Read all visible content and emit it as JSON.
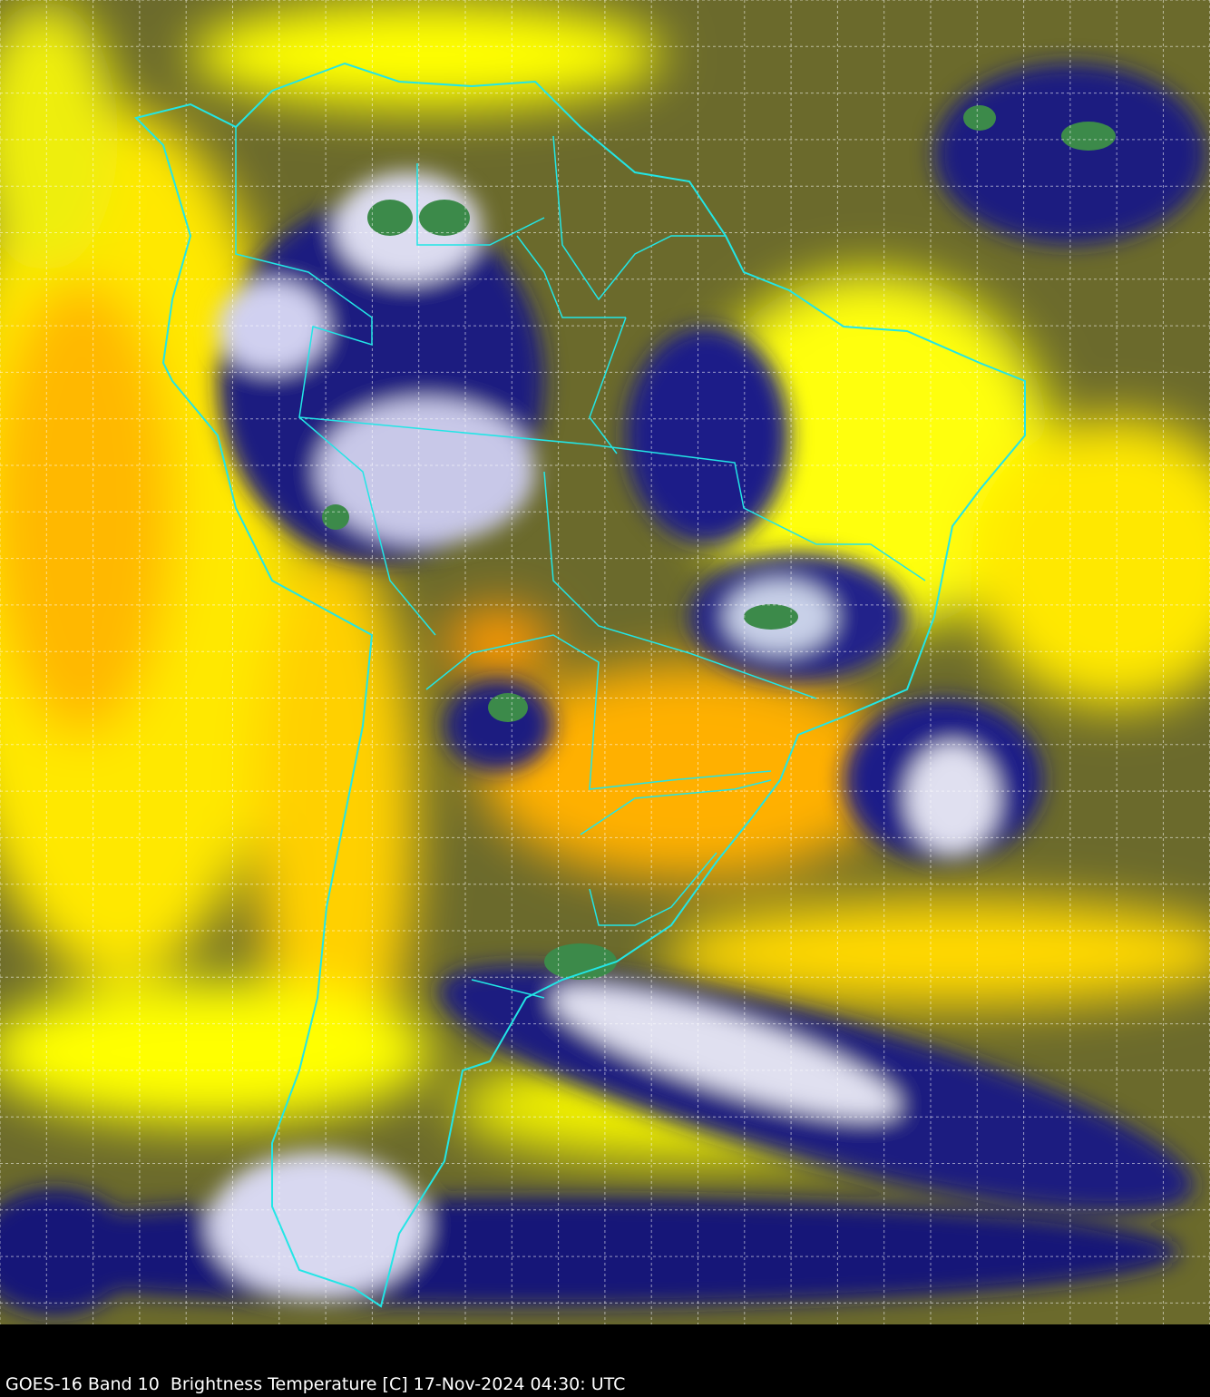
{
  "caption": "GOES-16 Band 10  Brightness Temperature [C] 17-Nov-2024 04:30: UTC",
  "colors": {
    "background": "#000000",
    "warm_dry": "#ffff00",
    "warmest": "#ffa500",
    "mid": "#5a5a2a",
    "cold_cloud": "#10107a",
    "coldest": "#ffffff",
    "deep_convection": "#3a8a4a",
    "boundaries": "#22e6e6",
    "grid": "#ffffff"
  },
  "map": {
    "grid": true,
    "grid_style": "dashed",
    "region": "South America",
    "projection_overlay": "country and state boundaries"
  }
}
